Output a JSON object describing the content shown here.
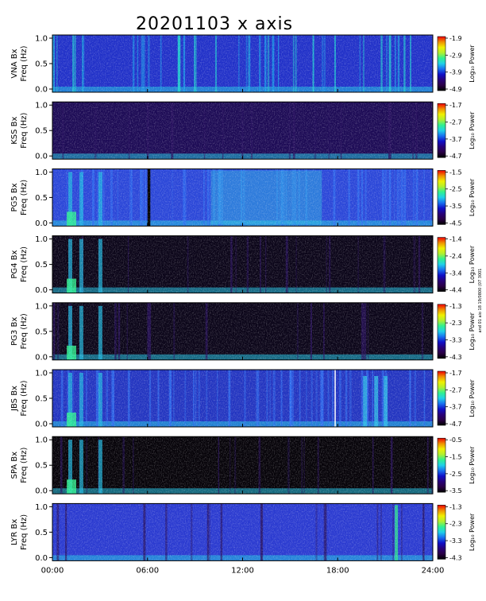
{
  "chart_data": {
    "type": "heatmap",
    "title": "20201103 x axis",
    "x_ticks": [
      "00:00",
      "06:00",
      "12:00",
      "18:00",
      "24:00"
    ],
    "x_range_hours": [
      0,
      24
    ],
    "y_ticks": [
      "0.0",
      "0.5",
      "1.0"
    ],
    "y_range_hz": [
      0.0,
      1.0
    ],
    "colorbar_label": "Log₁₀ Power",
    "side_note": "and 01 aio 18 19/0800 (07 3001",
    "colors": {
      "colormap": [
        "#000000",
        "#2a0046",
        "#28007a",
        "#1010c8",
        "#1870f0",
        "#20d0e8",
        "#30f090",
        "#b0f030",
        "#f0f000",
        "#f09000",
        "#f00000"
      ]
    },
    "panels": [
      {
        "station": "VNA",
        "ylabel_top": "VNA Bx",
        "ylabel_bottom": "Freq (Hz)",
        "cbar_ticks": [
          "-1.9",
          "-2.9",
          "-3.9",
          "-4.9"
        ]
      },
      {
        "station": "KSS",
        "ylabel_top": "KSS Bx",
        "ylabel_bottom": "Freq (Hz)",
        "cbar_ticks": [
          "-1.7",
          "-2.7",
          "-3.7",
          "-4.7"
        ]
      },
      {
        "station": "PG5",
        "ylabel_top": "PG5 Bx",
        "ylabel_bottom": "Freq (Hz)",
        "cbar_ticks": [
          "-1.5",
          "-2.5",
          "-3.5",
          "-4.5"
        ]
      },
      {
        "station": "PG4",
        "ylabel_top": "PG4 Bx",
        "ylabel_bottom": "Freq (Hz)",
        "cbar_ticks": [
          "-1.4",
          "-2.4",
          "-3.4",
          "-4.4"
        ]
      },
      {
        "station": "PG3",
        "ylabel_top": "PG3 Bx",
        "ylabel_bottom": "Freq (Hz)",
        "cbar_ticks": [
          "-1.3",
          "-2.3",
          "-3.3",
          "-4.3"
        ]
      },
      {
        "station": "JBS",
        "ylabel_top": "JBS Bx",
        "ylabel_bottom": "Freq (Hz)",
        "cbar_ticks": [
          "-1.7",
          "-2.7",
          "-3.7",
          "-4.7"
        ]
      },
      {
        "station": "SPA",
        "ylabel_top": "SPA Bx",
        "ylabel_bottom": "Freq (Hz)",
        "cbar_ticks": [
          "-0.5",
          "-1.5",
          "-2.5",
          "-3.5"
        ]
      },
      {
        "station": "LYR",
        "ylabel_top": "LYR Bx",
        "ylabel_bottom": "Freq (Hz)",
        "cbar_ticks": [
          "-1.3",
          "-2.3",
          "-3.3",
          "-4.3"
        ]
      }
    ]
  }
}
